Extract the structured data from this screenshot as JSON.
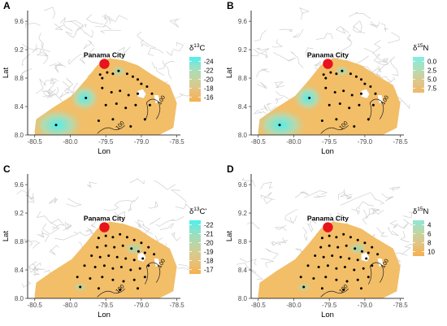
{
  "city": "Panama City",
  "contour_label": "100",
  "colors": {
    "low": "#4cf0f0",
    "mid": "#b7d9a6",
    "high": "#f5b14d",
    "base": "#f2be68",
    "roads": "#cfcfcf",
    "city": "#e8141b",
    "point": "#000000"
  },
  "chart_data": [
    {
      "panel": "A",
      "type": "heatmap",
      "xlabel": "Lon",
      "ylabel": "Lat",
      "xlim": [
        -80.6,
        -78.45
      ],
      "ylim": [
        8.0,
        9.75
      ],
      "xticks": [
        "-80.5",
        "-80.0",
        "-79.5",
        "-79.0",
        "-78.5"
      ],
      "yticks": [
        "8.0",
        "8.4",
        "8.8",
        "9.2",
        "9.6"
      ],
      "legend": {
        "title_main": "δ",
        "title_sup": "13",
        "title_rest": "C",
        "entries": [
          {
            "label": "-24",
            "color": "#4cf0f0"
          },
          {
            "label": "-22",
            "color": "#9fe0c2"
          },
          {
            "label": "-20",
            "color": "#c7d49e"
          },
          {
            "label": "-18",
            "color": "#e6c07f"
          },
          {
            "label": "-16",
            "color": "#f5b14d"
          }
        ]
      },
      "samples": [
        {
          "lon": -80.2,
          "lat": 8.14
        },
        {
          "lon": -79.78,
          "lat": 8.52
        },
        {
          "lon": -79.58,
          "lat": 8.85
        },
        {
          "lon": -79.55,
          "lat": 8.8
        },
        {
          "lon": -79.48,
          "lat": 8.88
        },
        {
          "lon": -79.4,
          "lat": 8.86
        },
        {
          "lon": -79.32,
          "lat": 8.9
        },
        {
          "lon": -79.2,
          "lat": 8.86
        },
        {
          "lon": -79.12,
          "lat": 8.82
        },
        {
          "lon": -79.05,
          "lat": 8.78
        },
        {
          "lon": -79.0,
          "lat": 8.72
        },
        {
          "lon": -78.92,
          "lat": 8.68
        },
        {
          "lon": -79.55,
          "lat": 8.66
        },
        {
          "lon": -79.42,
          "lat": 8.6
        },
        {
          "lon": -79.3,
          "lat": 8.62
        },
        {
          "lon": -79.18,
          "lat": 8.56
        },
        {
          "lon": -79.05,
          "lat": 8.58
        },
        {
          "lon": -78.85,
          "lat": 8.58
        },
        {
          "lon": -79.5,
          "lat": 8.42
        },
        {
          "lon": -79.35,
          "lat": 8.44
        },
        {
          "lon": -79.22,
          "lat": 8.38
        },
        {
          "lon": -79.08,
          "lat": 8.42
        },
        {
          "lon": -78.88,
          "lat": 8.42
        },
        {
          "lon": -79.6,
          "lat": 8.2
        },
        {
          "lon": -79.4,
          "lat": 8.22
        },
        {
          "lon": -79.15,
          "lat": 8.12
        },
        {
          "lon": -78.95,
          "lat": 8.22
        }
      ]
    },
    {
      "panel": "B",
      "type": "heatmap",
      "xlabel": "Lon",
      "ylabel": "Lat",
      "xlim": [
        -80.6,
        -78.45
      ],
      "ylim": [
        8.0,
        9.75
      ],
      "xticks": [
        "-80.5",
        "-80.0",
        "-79.5",
        "-79.0",
        "-78.5"
      ],
      "yticks": [
        "8.0",
        "8.4",
        "8.8",
        "9.2",
        "9.6"
      ],
      "legend": {
        "title_main": "δ",
        "title_sup": "15",
        "title_rest": "N",
        "entries": [
          {
            "label": "0.0",
            "color": "#7defe6"
          },
          {
            "label": "2.5",
            "color": "#b0dfb9"
          },
          {
            "label": "5.0",
            "color": "#dcc88d"
          },
          {
            "label": "7.5",
            "color": "#f0b968"
          }
        ]
      },
      "samples": [
        {
          "lon": -80.2,
          "lat": 8.14
        },
        {
          "lon": -79.78,
          "lat": 8.52
        },
        {
          "lon": -79.58,
          "lat": 8.85
        },
        {
          "lon": -79.55,
          "lat": 8.8
        },
        {
          "lon": -79.48,
          "lat": 8.88
        },
        {
          "lon": -79.4,
          "lat": 8.86
        },
        {
          "lon": -79.32,
          "lat": 8.9
        },
        {
          "lon": -79.2,
          "lat": 8.86
        },
        {
          "lon": -79.12,
          "lat": 8.82
        },
        {
          "lon": -79.05,
          "lat": 8.78
        },
        {
          "lon": -79.0,
          "lat": 8.72
        },
        {
          "lon": -78.92,
          "lat": 8.68
        },
        {
          "lon": -79.55,
          "lat": 8.66
        },
        {
          "lon": -79.42,
          "lat": 8.6
        },
        {
          "lon": -79.3,
          "lat": 8.62
        },
        {
          "lon": -79.18,
          "lat": 8.56
        },
        {
          "lon": -79.05,
          "lat": 8.58
        },
        {
          "lon": -78.85,
          "lat": 8.58
        },
        {
          "lon": -79.5,
          "lat": 8.42
        },
        {
          "lon": -79.35,
          "lat": 8.44
        },
        {
          "lon": -79.22,
          "lat": 8.38
        },
        {
          "lon": -79.08,
          "lat": 8.42
        },
        {
          "lon": -78.88,
          "lat": 8.42
        },
        {
          "lon": -79.6,
          "lat": 8.2
        },
        {
          "lon": -79.4,
          "lat": 8.22
        },
        {
          "lon": -79.15,
          "lat": 8.12
        },
        {
          "lon": -78.95,
          "lat": 8.22
        }
      ]
    },
    {
      "panel": "C",
      "type": "heatmap",
      "xlabel": "Lon",
      "ylabel": "Lat",
      "xlim": [
        -80.6,
        -78.45
      ],
      "ylim": [
        8.0,
        9.75
      ],
      "xticks": [
        "-80.5",
        "-80.0",
        "-79.5",
        "-79.0",
        "-78.5"
      ],
      "yticks": [
        "8.0",
        "8.4",
        "8.8",
        "9.2",
        "9.6"
      ],
      "legend": {
        "title_main": "δ",
        "title_sup": "13",
        "title_rest": "C'",
        "entries": [
          {
            "label": "-22",
            "color": "#4cf0f0"
          },
          {
            "label": "-21",
            "color": "#8be3cb"
          },
          {
            "label": "-20",
            "color": "#b3d8ab"
          },
          {
            "label": "-19",
            "color": "#d3cd91"
          },
          {
            "label": "-18",
            "color": "#e8c077"
          },
          {
            "label": "-17",
            "color": "#f5b14d"
          }
        ]
      },
      "samples": [
        {
          "lon": -79.6,
          "lat": 8.85
        },
        {
          "lon": -79.5,
          "lat": 8.88
        },
        {
          "lon": -79.4,
          "lat": 8.86
        },
        {
          "lon": -79.3,
          "lat": 8.9
        },
        {
          "lon": -79.2,
          "lat": 8.86
        },
        {
          "lon": -79.1,
          "lat": 8.82
        },
        {
          "lon": -79.0,
          "lat": 8.78
        },
        {
          "lon": -78.9,
          "lat": 8.72
        },
        {
          "lon": -79.62,
          "lat": 8.72
        },
        {
          "lon": -79.5,
          "lat": 8.74
        },
        {
          "lon": -79.38,
          "lat": 8.72
        },
        {
          "lon": -79.26,
          "lat": 8.74
        },
        {
          "lon": -79.14,
          "lat": 8.7
        },
        {
          "lon": -79.04,
          "lat": 8.66
        },
        {
          "lon": -78.95,
          "lat": 8.64
        },
        {
          "lon": -78.82,
          "lat": 8.62
        },
        {
          "lon": -79.7,
          "lat": 8.6
        },
        {
          "lon": -79.58,
          "lat": 8.58
        },
        {
          "lon": -79.46,
          "lat": 8.6
        },
        {
          "lon": -79.34,
          "lat": 8.58
        },
        {
          "lon": -79.22,
          "lat": 8.56
        },
        {
          "lon": -79.1,
          "lat": 8.54
        },
        {
          "lon": -78.98,
          "lat": 8.56
        },
        {
          "lon": -79.8,
          "lat": 8.46
        },
        {
          "lon": -79.65,
          "lat": 8.44
        },
        {
          "lon": -79.52,
          "lat": 8.46
        },
        {
          "lon": -79.4,
          "lat": 8.42
        },
        {
          "lon": -79.28,
          "lat": 8.44
        },
        {
          "lon": -79.15,
          "lat": 8.4
        },
        {
          "lon": -79.02,
          "lat": 8.42
        },
        {
          "lon": -78.9,
          "lat": 8.46
        },
        {
          "lon": -79.9,
          "lat": 8.3
        },
        {
          "lon": -79.72,
          "lat": 8.28
        },
        {
          "lon": -79.55,
          "lat": 8.3
        },
        {
          "lon": -79.4,
          "lat": 8.26
        },
        {
          "lon": -79.25,
          "lat": 8.24
        },
        {
          "lon": -79.1,
          "lat": 8.26
        },
        {
          "lon": -78.95,
          "lat": 8.3
        },
        {
          "lon": -79.86,
          "lat": 8.16
        },
        {
          "lon": -79.6,
          "lat": 8.14
        },
        {
          "lon": -79.3,
          "lat": 8.12
        },
        {
          "lon": -79.05,
          "lat": 8.14
        }
      ]
    },
    {
      "panel": "D",
      "type": "heatmap",
      "xlabel": "Lon",
      "ylabel": "Lat",
      "xlim": [
        -80.6,
        -78.45
      ],
      "ylim": [
        8.0,
        9.75
      ],
      "xticks": [
        "-80.5",
        "-80.0",
        "-79.5",
        "-79.0",
        "-78.5"
      ],
      "yticks": [
        "8.0",
        "8.4",
        "8.8",
        "9.2",
        "9.6"
      ],
      "legend": {
        "title_main": "δ",
        "title_sup": "15",
        "title_rest": "N",
        "entries": [
          {
            "label": "4",
            "color": "#8fe6d6"
          },
          {
            "label": "6",
            "color": "#c0d6a4"
          },
          {
            "label": "8",
            "color": "#e3c384"
          },
          {
            "label": "10",
            "color": "#f5b14d"
          }
        ]
      },
      "samples": [
        {
          "lon": -79.6,
          "lat": 8.85
        },
        {
          "lon": -79.5,
          "lat": 8.88
        },
        {
          "lon": -79.4,
          "lat": 8.86
        },
        {
          "lon": -79.3,
          "lat": 8.9
        },
        {
          "lon": -79.2,
          "lat": 8.86
        },
        {
          "lon": -79.1,
          "lat": 8.82
        },
        {
          "lon": -79.0,
          "lat": 8.78
        },
        {
          "lon": -78.9,
          "lat": 8.72
        },
        {
          "lon": -79.62,
          "lat": 8.72
        },
        {
          "lon": -79.5,
          "lat": 8.74
        },
        {
          "lon": -79.38,
          "lat": 8.72
        },
        {
          "lon": -79.26,
          "lat": 8.74
        },
        {
          "lon": -79.14,
          "lat": 8.7
        },
        {
          "lon": -79.04,
          "lat": 8.66
        },
        {
          "lon": -78.95,
          "lat": 8.64
        },
        {
          "lon": -78.82,
          "lat": 8.62
        },
        {
          "lon": -79.7,
          "lat": 8.6
        },
        {
          "lon": -79.58,
          "lat": 8.58
        },
        {
          "lon": -79.46,
          "lat": 8.6
        },
        {
          "lon": -79.34,
          "lat": 8.58
        },
        {
          "lon": -79.22,
          "lat": 8.56
        },
        {
          "lon": -79.1,
          "lat": 8.54
        },
        {
          "lon": -78.98,
          "lat": 8.56
        },
        {
          "lon": -79.8,
          "lat": 8.46
        },
        {
          "lon": -79.65,
          "lat": 8.44
        },
        {
          "lon": -79.52,
          "lat": 8.46
        },
        {
          "lon": -79.4,
          "lat": 8.42
        },
        {
          "lon": -79.28,
          "lat": 8.44
        },
        {
          "lon": -79.15,
          "lat": 8.4
        },
        {
          "lon": -79.02,
          "lat": 8.42
        },
        {
          "lon": -78.9,
          "lat": 8.46
        },
        {
          "lon": -79.9,
          "lat": 8.3
        },
        {
          "lon": -79.72,
          "lat": 8.28
        },
        {
          "lon": -79.55,
          "lat": 8.3
        },
        {
          "lon": -79.4,
          "lat": 8.26
        },
        {
          "lon": -79.25,
          "lat": 8.24
        },
        {
          "lon": -79.1,
          "lat": 8.26
        },
        {
          "lon": -78.95,
          "lat": 8.3
        },
        {
          "lon": -79.86,
          "lat": 8.16
        },
        {
          "lon": -79.6,
          "lat": 8.14
        },
        {
          "lon": -79.3,
          "lat": 8.12
        },
        {
          "lon": -79.05,
          "lat": 8.14
        }
      ]
    }
  ]
}
